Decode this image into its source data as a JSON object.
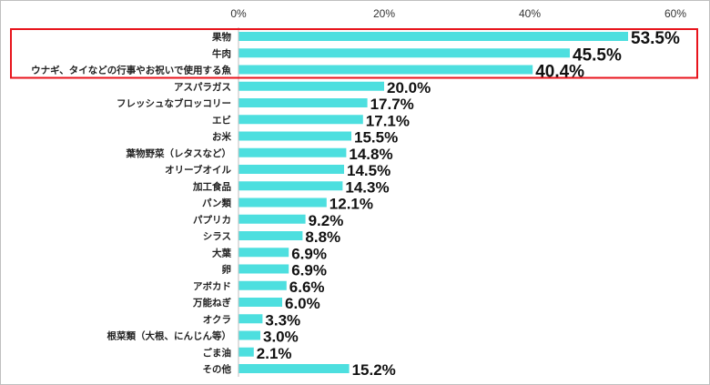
{
  "chart_data": {
    "type": "bar",
    "orientation": "horizontal",
    "categories": [
      "果物",
      "牛肉",
      "ウナギ、タイなどの行事やお祝いで使用する魚",
      "アスパラガス",
      "フレッシュなブロッコリー",
      "エビ",
      "お米",
      "葉物野菜（レタスなど）",
      "オリーブオイル",
      "加工食品",
      "パン類",
      "パプリカ",
      "シラス",
      "大葉",
      "卵",
      "アボカド",
      "万能ねぎ",
      "オクラ",
      "根菜類（大根、にんじん等）",
      "ごま油",
      "その他"
    ],
    "values": [
      53.5,
      45.5,
      40.4,
      20.0,
      17.7,
      17.1,
      15.5,
      14.8,
      14.5,
      14.3,
      12.1,
      9.2,
      8.8,
      6.9,
      6.9,
      6.6,
      6.0,
      3.3,
      3.0,
      2.1,
      15.2
    ],
    "value_labels": [
      "53.5%",
      "45.5%",
      "40.4%",
      "20.0%",
      "17.7%",
      "17.1%",
      "15.5%",
      "14.8%",
      "14.5%",
      "14.3%",
      "12.1%",
      "9.2%",
      "8.8%",
      "6.9%",
      "6.9%",
      "6.6%",
      "6.0%",
      "3.3%",
      "3.0%",
      "2.1%",
      "15.2%"
    ],
    "xlim": [
      0,
      60
    ],
    "ticks": [
      0,
      20,
      40,
      60
    ],
    "tick_labels": [
      "0%",
      "20%",
      "40%",
      "60%"
    ],
    "title": "",
    "xlabel": "",
    "ylabel": "",
    "grid": false,
    "legend": "none",
    "highlight": {
      "categories": [
        0,
        1,
        2
      ],
      "color": "#e8141c"
    },
    "bar_color": "#4ddfdf"
  }
}
